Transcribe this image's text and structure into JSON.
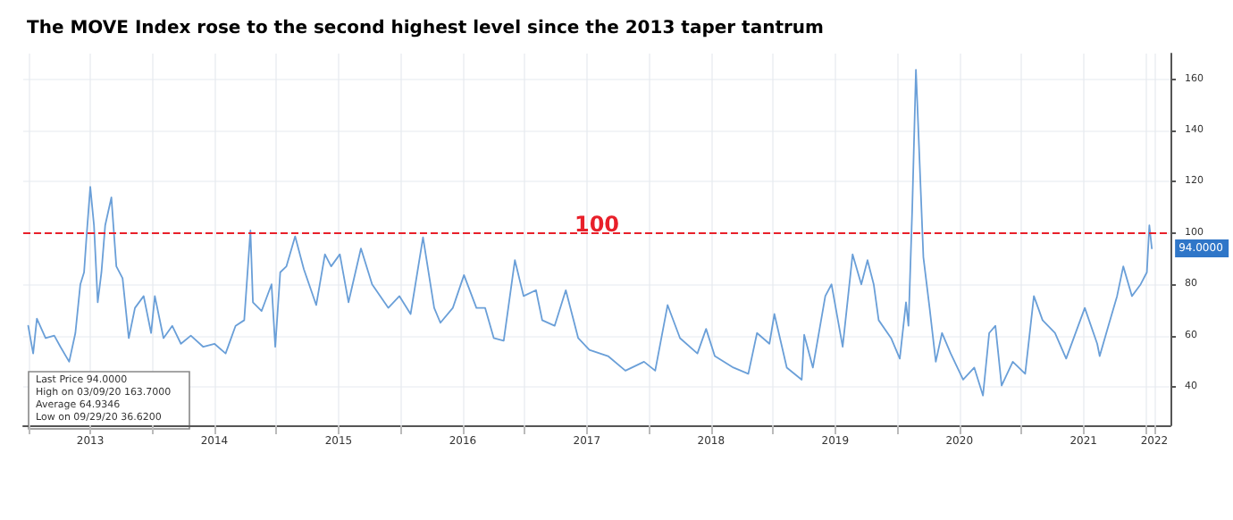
{
  "chart_data": {
    "type": "line",
    "title": "The MOVE Index rose to the second highest level since the 2013 taper tantrum",
    "series": [
      {
        "color": "#6a9fd8",
        "x": [
          2013.0,
          2013.04,
          2013.07,
          2013.14,
          2013.21,
          2013.26,
          2013.33,
          2013.38,
          2013.42,
          2013.45,
          2013.47,
          2013.5,
          2013.53,
          2013.56,
          2013.59,
          2013.62,
          2013.67,
          2013.71,
          2013.76,
          2013.81,
          2013.86,
          2013.93,
          2013.99,
          2014.02,
          2014.09,
          2014.16,
          2014.23,
          2014.31,
          2014.41,
          2014.5,
          2014.59,
          2014.67,
          2014.74,
          2014.79,
          2014.81,
          2014.88,
          2014.96,
          2014.99,
          2015.03,
          2015.08,
          2015.15,
          2015.22,
          2015.32,
          2015.39,
          2015.44,
          2015.51,
          2015.58,
          2015.68,
          2015.77,
          2015.9,
          2015.99,
          2016.08,
          2016.18,
          2016.27,
          2016.32,
          2016.42,
          2016.51,
          2016.61,
          2016.68,
          2016.75,
          2016.83,
          2016.92,
          2016.99,
          2017.09,
          2017.14,
          2017.24,
          2017.33,
          2017.43,
          2017.52,
          2017.67,
          2017.81,
          2017.96,
          2018.05,
          2018.15,
          2018.25,
          2018.39,
          2018.46,
          2018.53,
          2018.68,
          2018.8,
          2018.87,
          2018.97,
          2019.01,
          2019.11,
          2019.23,
          2019.25,
          2019.32,
          2019.42,
          2019.47,
          2019.56,
          2019.64,
          2019.71,
          2019.76,
          2019.81,
          2019.85,
          2019.95,
          2020.02,
          2020.07,
          2020.09,
          2020.12,
          2020.15,
          2020.16,
          2020.19,
          2020.21,
          2020.26,
          2020.31,
          2020.36,
          2020.43,
          2020.53,
          2020.62,
          2020.69,
          2020.74,
          2020.79,
          2020.84,
          2020.93,
          2021.03,
          2021.1,
          2021.17,
          2021.27,
          2021.36,
          2021.51,
          2021.61,
          2021.63,
          2021.7,
          2021.77,
          2021.82,
          2021.89,
          2021.96,
          2022.01,
          2022.03,
          2022.05
        ],
        "values": [
          63.8,
          53,
          66.6,
          59,
          60,
          55.6,
          49.8,
          61,
          80,
          84.7,
          98.7,
          118,
          103,
          73,
          84.7,
          103,
          113.9,
          87,
          82.4,
          59,
          70.8,
          75.4,
          61,
          75.4,
          59,
          63.8,
          56.8,
          60,
          55.6,
          56.8,
          53,
          63.8,
          66,
          101,
          73,
          69.6,
          80,
          55.6,
          84.7,
          87,
          98.7,
          85.9,
          71.9,
          91.7,
          87,
          91.7,
          73,
          94,
          80,
          70.8,
          75.4,
          68.4,
          98.3,
          70.8,
          65,
          70.8,
          83.6,
          70.8,
          70.8,
          59,
          58,
          89.4,
          75.4,
          77.7,
          66,
          63.8,
          77.7,
          59,
          54.4,
          52,
          46.3,
          49.8,
          46.3,
          71.9,
          59,
          53,
          62.6,
          52,
          47.5,
          45.1,
          61,
          56.8,
          68.4,
          47.5,
          42.8,
          60.3,
          47.5,
          75.4,
          80,
          55.6,
          91.7,
          80,
          89.4,
          80,
          66,
          59,
          51,
          73,
          63.8,
          109,
          163.7,
          152,
          115,
          90.6,
          70.8,
          49.8,
          61,
          53,
          42.8,
          47.5,
          36.6,
          61,
          63.8,
          40.5,
          49.8,
          45.1,
          75.4,
          66,
          61,
          51,
          70.8,
          56.8,
          52,
          63.8,
          75.4,
          87,
          75.4,
          80,
          84.7,
          103,
          94
        ]
      }
    ],
    "xlim": [
      2012.96,
      2022.2
    ],
    "xticks": [
      {
        "value": 2013,
        "label": null
      },
      {
        "value": 2013.5,
        "label": "2013"
      },
      {
        "value": 2014,
        "label": null
      },
      {
        "value": 2014.5,
        "label": "2014"
      },
      {
        "value": 2015,
        "label": null
      },
      {
        "value": 2015.5,
        "label": "2015"
      },
      {
        "value": 2016,
        "label": null
      },
      {
        "value": 2016.5,
        "label": "2016"
      },
      {
        "value": 2017,
        "label": null
      },
      {
        "value": 2017.5,
        "label": "2017"
      },
      {
        "value": 2018,
        "label": null
      },
      {
        "value": 2018.5,
        "label": "2018"
      },
      {
        "value": 2019,
        "label": null
      },
      {
        "value": 2019.5,
        "label": "2019"
      },
      {
        "value": 2020,
        "label": null
      },
      {
        "value": 2020.5,
        "label": "2020"
      },
      {
        "value": 2021,
        "label": null
      },
      {
        "value": 2021.5,
        "label": "2021"
      },
      {
        "value": 2022,
        "label": null
      },
      {
        "value": 2022.07,
        "label": "2022"
      }
    ],
    "ylim": [
      25,
      170
    ],
    "yticks": [
      40,
      60,
      80,
      100,
      120,
      140,
      160
    ],
    "ref_lines": [
      {
        "axis": "y",
        "value": 100,
        "label": "100",
        "color": "#e8202a",
        "line_style": "dashed"
      }
    ],
    "annotations": [
      "Last Price 94.0000",
      "High on 03/09/20 163.7000",
      "Average 64.9346",
      "Low on 09/29/20 36.6200",
      {
        "text": "94.0000",
        "x": 2022.05,
        "y": 94
      }
    ],
    "grid": true,
    "marker": "none",
    "line_style": "solid"
  }
}
